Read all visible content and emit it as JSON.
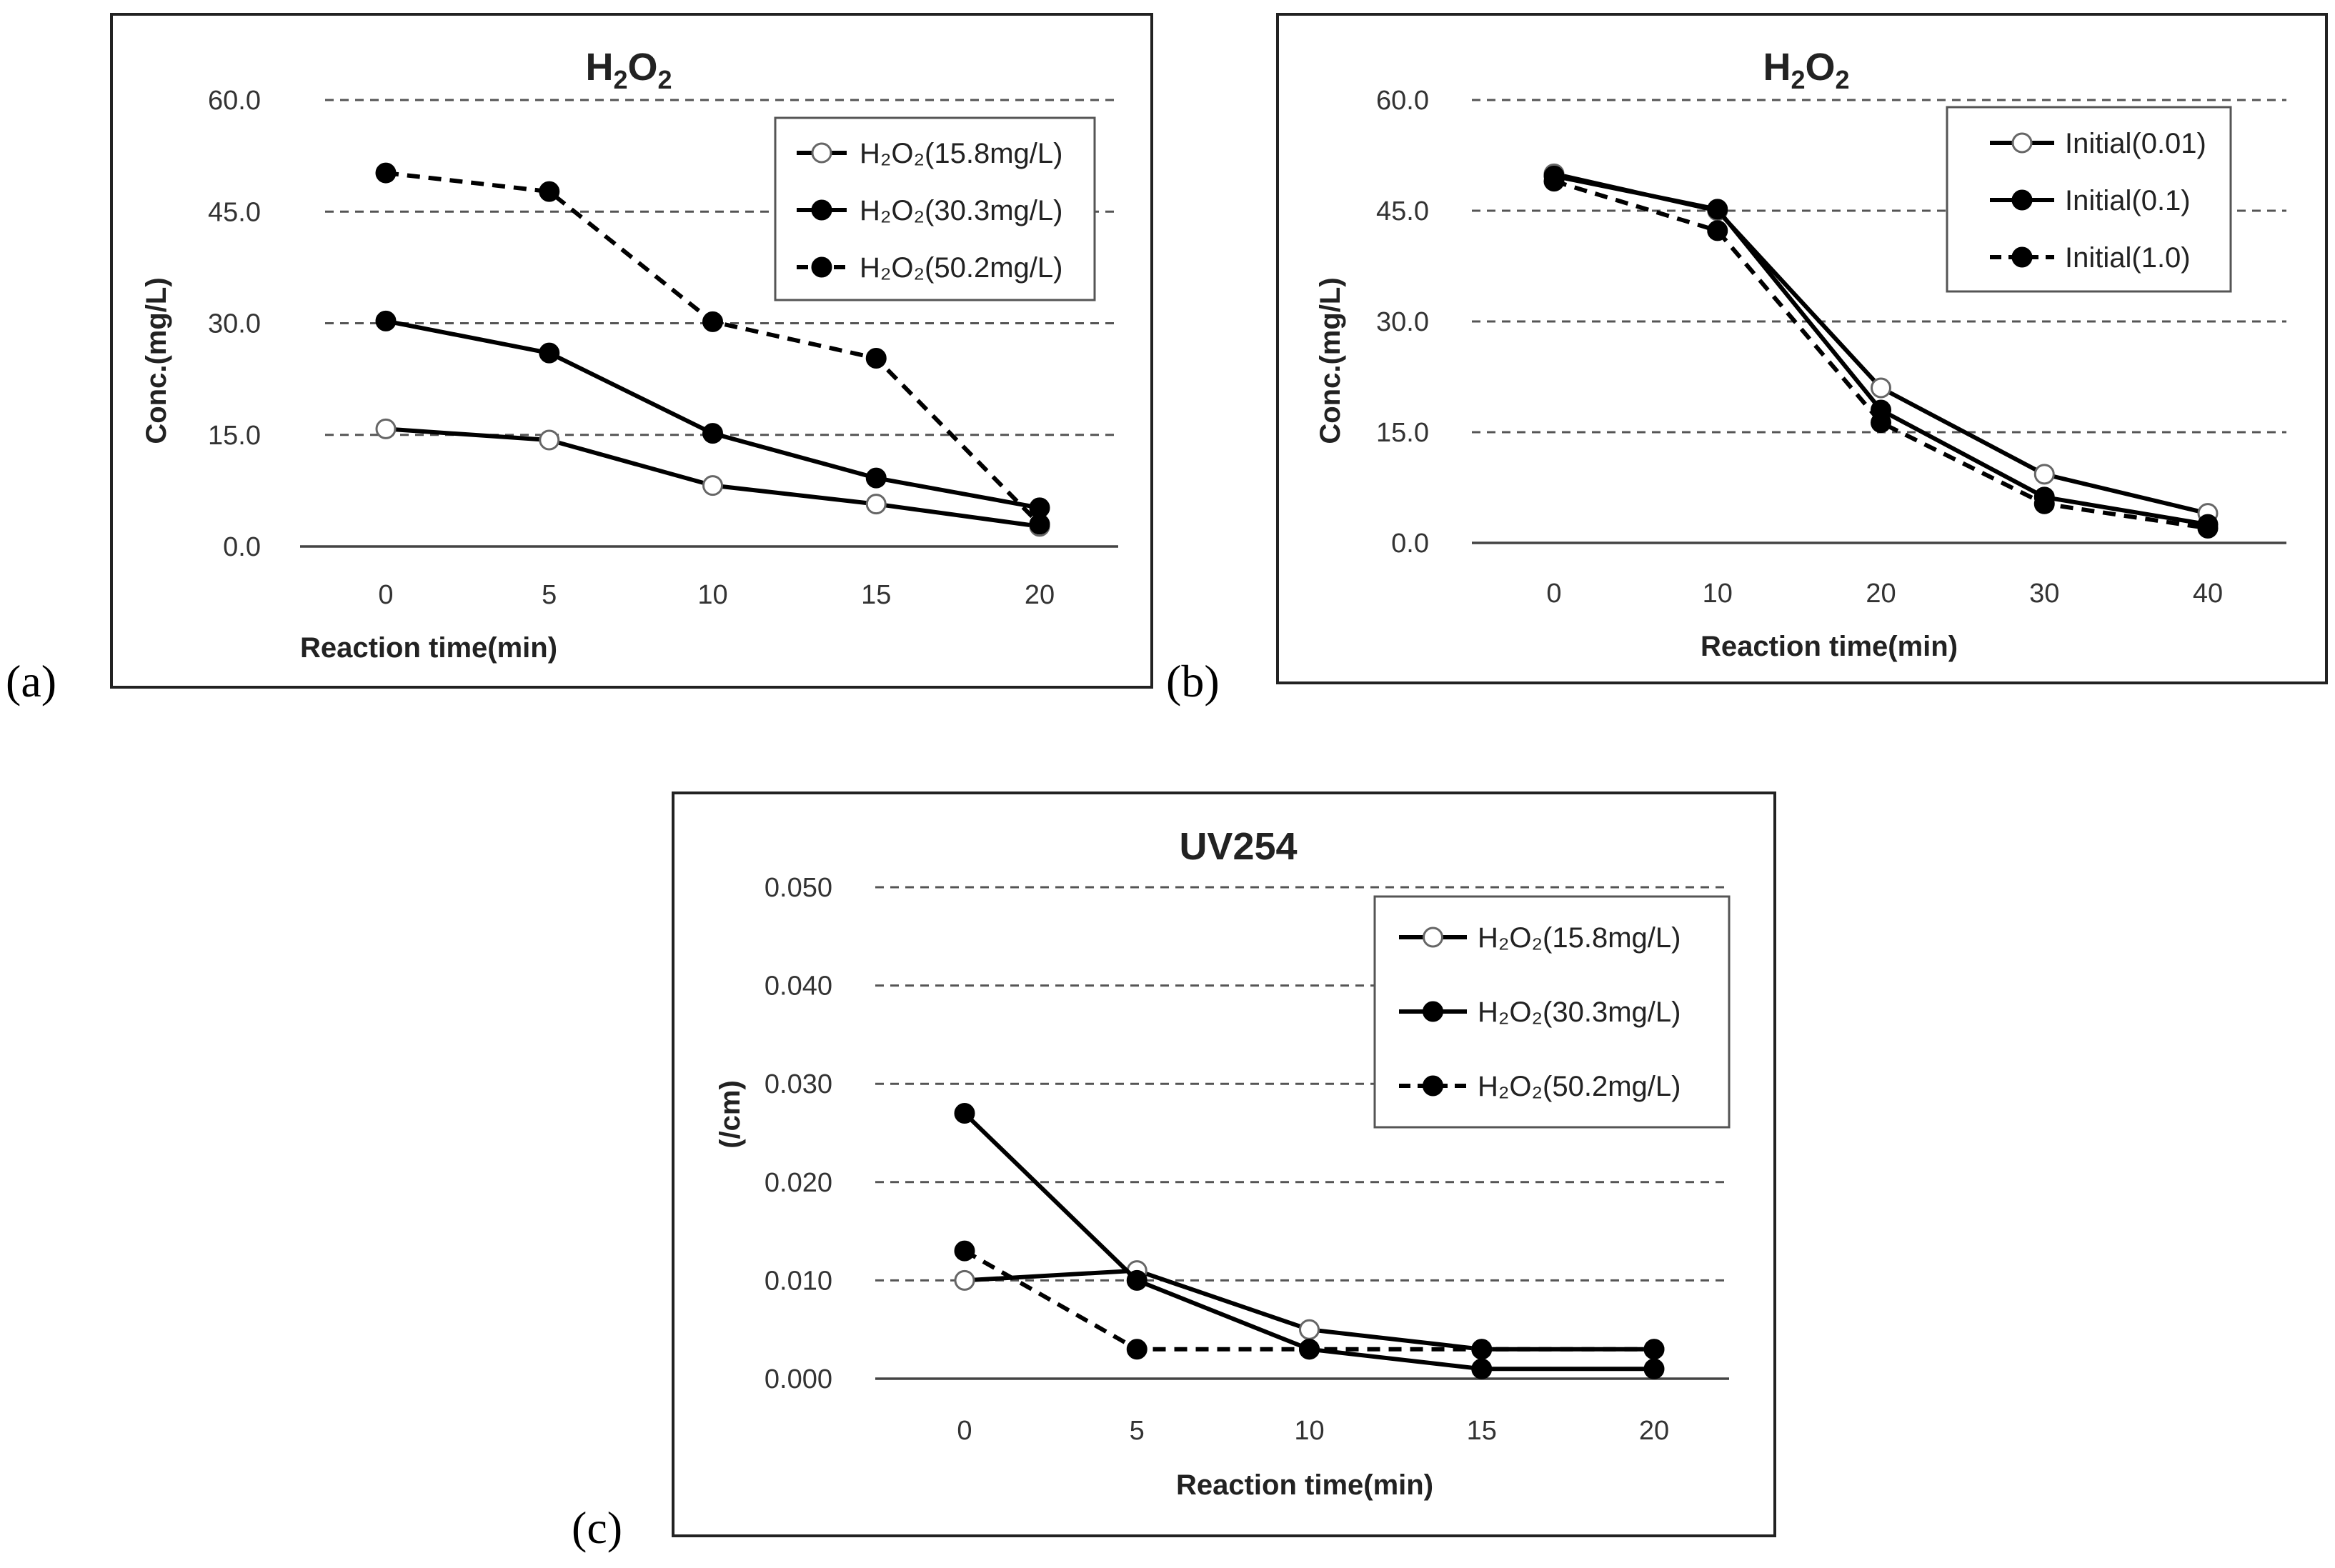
{
  "panel_labels": {
    "a": "(a)",
    "b": "(b)",
    "c": "(c)"
  },
  "chart_data": [
    {
      "type": "line",
      "title_main": "H",
      "title_sub1": "2",
      "title_mid": "O",
      "title_sub2": "2",
      "xlabel": "Reaction time(min)",
      "ylabel": "Conc.(mg/L)",
      "x": [
        0,
        5,
        10,
        15,
        20
      ],
      "x_ticks": [
        "0",
        "5",
        "10",
        "15",
        "20"
      ],
      "y_ticks": [
        "0.0",
        "15.0",
        "30.0",
        "45.0",
        "60.0"
      ],
      "ylim": [
        0,
        60
      ],
      "grid": "dashed horizontal",
      "legend_position": "top-right",
      "series": [
        {
          "name": "H₂O₂(15.8mg/L)",
          "marker": "open",
          "dash": "solid",
          "values": [
            15.8,
            14.3,
            8.2,
            5.7,
            2.7
          ]
        },
        {
          "name": "H₂O₂(30.3mg/L)",
          "marker": "filled",
          "dash": "solid",
          "values": [
            30.3,
            26.0,
            15.2,
            9.2,
            5.2
          ]
        },
        {
          "name": "H₂O₂(50.2mg/L)",
          "marker": "filled",
          "dash": "dashed",
          "values": [
            50.2,
            47.7,
            30.2,
            25.3,
            3.0
          ]
        }
      ]
    },
    {
      "type": "line",
      "title_main": "H",
      "title_sub1": "2",
      "title_mid": "O",
      "title_sub2": "2",
      "xlabel": "Reaction time(min)",
      "ylabel": "Conc.(mg/L)",
      "x": [
        0,
        10,
        20,
        30,
        40
      ],
      "x_ticks": [
        "0",
        "10",
        "20",
        "30",
        "40"
      ],
      "y_ticks": [
        "0.0",
        "15.0",
        "30.0",
        "45.0",
        "60.0"
      ],
      "ylim": [
        0,
        60
      ],
      "grid": "dashed horizontal",
      "legend_position": "top-right",
      "series": [
        {
          "name": "Initial(0.01)",
          "marker": "open",
          "dash": "solid",
          "values": [
            50.0,
            45.0,
            21.0,
            9.3,
            4.0
          ]
        },
        {
          "name": "Initial(0.1)",
          "marker": "filled",
          "dash": "solid",
          "values": [
            49.7,
            45.2,
            18.0,
            6.2,
            2.5
          ]
        },
        {
          "name": "Initial(1.0)",
          "marker": "filled",
          "dash": "dashed",
          "values": [
            49.0,
            42.3,
            16.3,
            5.3,
            2.0
          ]
        }
      ]
    },
    {
      "type": "line",
      "title_main": "UV254",
      "xlabel": "Reaction time(min)",
      "ylabel": "(/cm)",
      "x": [
        0,
        5,
        10,
        15,
        20
      ],
      "x_ticks": [
        "0",
        "5",
        "10",
        "15",
        "20"
      ],
      "y_ticks": [
        "0.000",
        "0.010",
        "0.020",
        "0.030",
        "0.040",
        "0.050"
      ],
      "ylim": [
        0,
        0.05
      ],
      "grid": "dashed horizontal",
      "legend_position": "top-right",
      "series": [
        {
          "name": "H₂O₂(15.8mg/L)",
          "marker": "open",
          "dash": "solid",
          "values": [
            0.01,
            0.011,
            0.005,
            0.003,
            0.003
          ]
        },
        {
          "name": "H₂O₂(30.3mg/L)",
          "marker": "filled",
          "dash": "solid",
          "values": [
            0.027,
            0.01,
            0.003,
            0.001,
            0.001
          ]
        },
        {
          "name": "H₂O₂(50.2mg/L)",
          "marker": "filled",
          "dash": "dashed",
          "values": [
            0.013,
            0.003,
            0.003,
            0.003,
            0.003
          ]
        }
      ]
    }
  ]
}
